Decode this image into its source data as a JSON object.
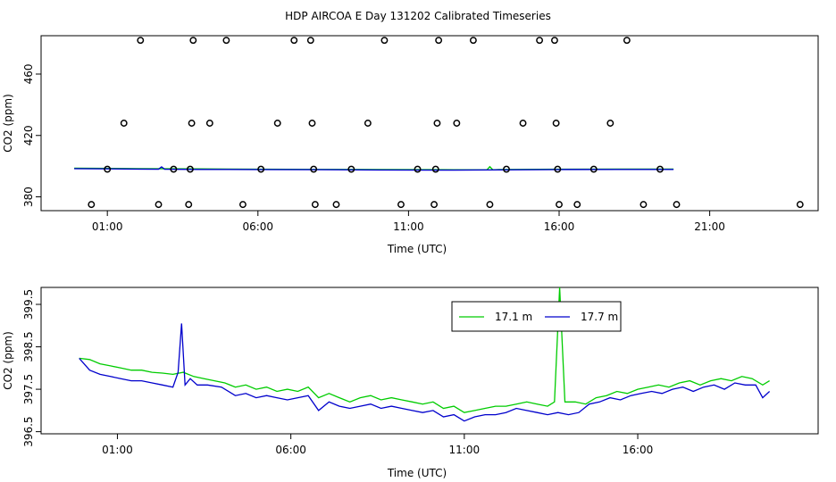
{
  "title": "HDP AIRCOA E  Day 131202  Calibrated Timeseries",
  "colors": {
    "green": "#00cc00",
    "blue": "#0000cc",
    "axis": "#000000"
  },
  "chart_data": [
    {
      "type": "scatter",
      "xlabel": "Time (UTC)",
      "ylabel": "CO2 (ppm)",
      "x_unit": "hour of day (UTC)",
      "xlim": [
        -1.2,
        24.6
      ],
      "ylim": [
        371,
        485
      ],
      "xticks": [
        {
          "value": 1,
          "label": "01:00"
        },
        {
          "value": 6,
          "label": "06:00"
        },
        {
          "value": 11,
          "label": "11:00"
        },
        {
          "value": 16,
          "label": "16:00"
        },
        {
          "value": 21,
          "label": "21:00"
        }
      ],
      "yticks": [
        {
          "value": 380,
          "label": "380"
        },
        {
          "value": 420,
          "label": "420"
        },
        {
          "value": 460,
          "label": "460"
        }
      ],
      "grid": false,
      "calibration_points": [
        {
          "x": 0.47,
          "y": 375
        },
        {
          "x": 1.0,
          "y": 398
        },
        {
          "x": 1.55,
          "y": 428
        },
        {
          "x": 2.1,
          "y": 482
        },
        {
          "x": 2.7,
          "y": 375
        },
        {
          "x": 3.2,
          "y": 398
        },
        {
          "x": 3.7,
          "y": 375
        },
        {
          "x": 3.75,
          "y": 398
        },
        {
          "x": 3.8,
          "y": 428
        },
        {
          "x": 3.85,
          "y": 482
        },
        {
          "x": 4.4,
          "y": 428
        },
        {
          "x": 4.95,
          "y": 482
        },
        {
          "x": 5.5,
          "y": 375
        },
        {
          "x": 6.1,
          "y": 398
        },
        {
          "x": 6.65,
          "y": 428
        },
        {
          "x": 7.2,
          "y": 482
        },
        {
          "x": 7.75,
          "y": 482
        },
        {
          "x": 7.8,
          "y": 428
        },
        {
          "x": 7.85,
          "y": 398
        },
        {
          "x": 7.9,
          "y": 375
        },
        {
          "x": 8.6,
          "y": 375
        },
        {
          "x": 9.1,
          "y": 398
        },
        {
          "x": 9.65,
          "y": 428
        },
        {
          "x": 10.2,
          "y": 482
        },
        {
          "x": 10.75,
          "y": 375
        },
        {
          "x": 11.3,
          "y": 398
        },
        {
          "x": 11.85,
          "y": 375
        },
        {
          "x": 11.9,
          "y": 398
        },
        {
          "x": 11.95,
          "y": 428
        },
        {
          "x": 12.0,
          "y": 482
        },
        {
          "x": 12.6,
          "y": 428
        },
        {
          "x": 13.15,
          "y": 482
        },
        {
          "x": 13.7,
          "y": 375
        },
        {
          "x": 14.25,
          "y": 398
        },
        {
          "x": 14.8,
          "y": 428
        },
        {
          "x": 15.35,
          "y": 482
        },
        {
          "x": 15.85,
          "y": 482
        },
        {
          "x": 15.9,
          "y": 428
        },
        {
          "x": 15.95,
          "y": 398
        },
        {
          "x": 16.0,
          "y": 375
        },
        {
          "x": 16.6,
          "y": 375
        },
        {
          "x": 17.15,
          "y": 398
        },
        {
          "x": 17.7,
          "y": 428
        },
        {
          "x": 18.25,
          "y": 482
        },
        {
          "x": 18.8,
          "y": 375
        },
        {
          "x": 19.35,
          "y": 398
        },
        {
          "x": 19.9,
          "y": 375
        },
        {
          "x": 24.0,
          "y": 375
        }
      ],
      "series": [
        {
          "color": "#00cc00",
          "x": [
            -0.1,
            2.0,
            4.0,
            6.0,
            8.0,
            10.0,
            12.0,
            13.6,
            13.7,
            13.8,
            14.0,
            16.0,
            18.0,
            19.8
          ],
          "y": [
            398.6,
            398.4,
            398.2,
            398.0,
            397.9,
            397.8,
            397.7,
            397.6,
            399.6,
            397.6,
            397.8,
            398.0,
            398.1,
            398.1
          ]
        },
        {
          "color": "#0000cc",
          "x": [
            -0.1,
            2.0,
            2.7,
            2.8,
            2.9,
            4.0,
            6.0,
            8.0,
            10.0,
            12.0,
            14.0,
            16.0,
            18.0,
            19.8
          ],
          "y": [
            398.4,
            398.1,
            398.0,
            399.5,
            398.0,
            397.9,
            397.8,
            397.7,
            397.5,
            397.4,
            397.6,
            397.8,
            397.9,
            397.9
          ]
        }
      ]
    },
    {
      "type": "line",
      "xlabel": "Time (UTC)",
      "ylabel": "CO2 (ppm)",
      "x_unit": "hour of day (UTC)",
      "xlim": [
        -1.2,
        21.2
      ],
      "ylim": [
        396.45,
        399.9
      ],
      "xticks": [
        {
          "value": 1,
          "label": "01:00"
        },
        {
          "value": 6,
          "label": "06:00"
        },
        {
          "value": 11,
          "label": "11:00"
        },
        {
          "value": 16,
          "label": "16:00"
        }
      ],
      "yticks": [
        {
          "value": 396.5,
          "label": "396.5"
        },
        {
          "value": 397.5,
          "label": "397.5"
        },
        {
          "value": 398.5,
          "label": "398.5"
        },
        {
          "value": 399.5,
          "label": "399.5"
        }
      ],
      "grid": false,
      "legend": {
        "position": "top-center"
      },
      "series": [
        {
          "name": "17.1 m",
          "color": "#00cc00",
          "x": [
            -0.1,
            0.2,
            0.5,
            0.8,
            1.1,
            1.4,
            1.7,
            2.0,
            2.3,
            2.6,
            2.9,
            3.2,
            3.5,
            3.8,
            4.1,
            4.4,
            4.7,
            5.0,
            5.3,
            5.6,
            5.9,
            6.2,
            6.5,
            6.8,
            7.1,
            7.4,
            7.7,
            8.0,
            8.3,
            8.6,
            8.9,
            9.2,
            9.5,
            9.8,
            10.1,
            10.4,
            10.7,
            11.0,
            11.3,
            11.6,
            11.9,
            12.2,
            12.5,
            12.8,
            13.1,
            13.4,
            13.6,
            13.75,
            13.9,
            14.2,
            14.5,
            14.8,
            15.1,
            15.4,
            15.7,
            16.0,
            16.3,
            16.6,
            16.9,
            17.2,
            17.5,
            17.8,
            18.1,
            18.4,
            18.7,
            19.0,
            19.3,
            19.6,
            19.8
          ],
          "y": [
            398.23,
            398.2,
            398.1,
            398.05,
            398.0,
            397.95,
            397.95,
            397.9,
            397.88,
            397.85,
            397.9,
            397.8,
            397.75,
            397.7,
            397.65,
            397.55,
            397.6,
            397.5,
            397.55,
            397.45,
            397.5,
            397.45,
            397.55,
            397.3,
            397.4,
            397.3,
            397.2,
            397.3,
            397.35,
            397.25,
            397.3,
            397.25,
            397.2,
            397.15,
            397.2,
            397.05,
            397.1,
            396.95,
            397.0,
            397.05,
            397.1,
            397.1,
            397.15,
            397.2,
            397.15,
            397.1,
            397.2,
            399.9,
            397.2,
            397.2,
            397.15,
            397.3,
            397.35,
            397.45,
            397.4,
            397.5,
            397.55,
            397.6,
            397.55,
            397.65,
            397.7,
            397.6,
            397.7,
            397.75,
            397.7,
            397.8,
            397.75,
            397.6,
            397.7
          ]
        },
        {
          "name": "17.7 m",
          "color": "#0000cc",
          "x": [
            -0.1,
            0.2,
            0.5,
            0.8,
            1.1,
            1.4,
            1.7,
            2.0,
            2.3,
            2.6,
            2.75,
            2.85,
            2.95,
            3.1,
            3.3,
            3.6,
            4.0,
            4.4,
            4.7,
            5.0,
            5.3,
            5.6,
            5.9,
            6.2,
            6.5,
            6.8,
            7.1,
            7.4,
            7.7,
            8.0,
            8.3,
            8.6,
            8.9,
            9.2,
            9.5,
            9.8,
            10.1,
            10.4,
            10.7,
            11.0,
            11.3,
            11.6,
            11.9,
            12.2,
            12.5,
            12.8,
            13.1,
            13.4,
            13.7,
            14.0,
            14.3,
            14.6,
            14.9,
            15.2,
            15.5,
            15.8,
            16.1,
            16.4,
            16.7,
            17.0,
            17.3,
            17.6,
            17.9,
            18.2,
            18.5,
            18.8,
            19.1,
            19.4,
            19.6,
            19.8
          ],
          "y": [
            398.23,
            397.95,
            397.85,
            397.8,
            397.75,
            397.7,
            397.7,
            397.65,
            397.6,
            397.55,
            397.9,
            399.05,
            397.6,
            397.75,
            397.6,
            397.6,
            397.55,
            397.35,
            397.4,
            397.3,
            397.35,
            397.3,
            397.25,
            397.3,
            397.35,
            397.0,
            397.2,
            397.1,
            397.05,
            397.1,
            397.15,
            397.05,
            397.1,
            397.05,
            397.0,
            396.95,
            397.0,
            396.85,
            396.9,
            396.75,
            396.85,
            396.9,
            396.9,
            396.95,
            397.05,
            397.0,
            396.95,
            396.9,
            396.95,
            396.9,
            396.95,
            397.15,
            397.2,
            397.3,
            397.25,
            397.35,
            397.4,
            397.45,
            397.4,
            397.5,
            397.55,
            397.45,
            397.55,
            397.6,
            397.5,
            397.65,
            397.6,
            397.6,
            397.3,
            397.45
          ]
        }
      ]
    }
  ]
}
